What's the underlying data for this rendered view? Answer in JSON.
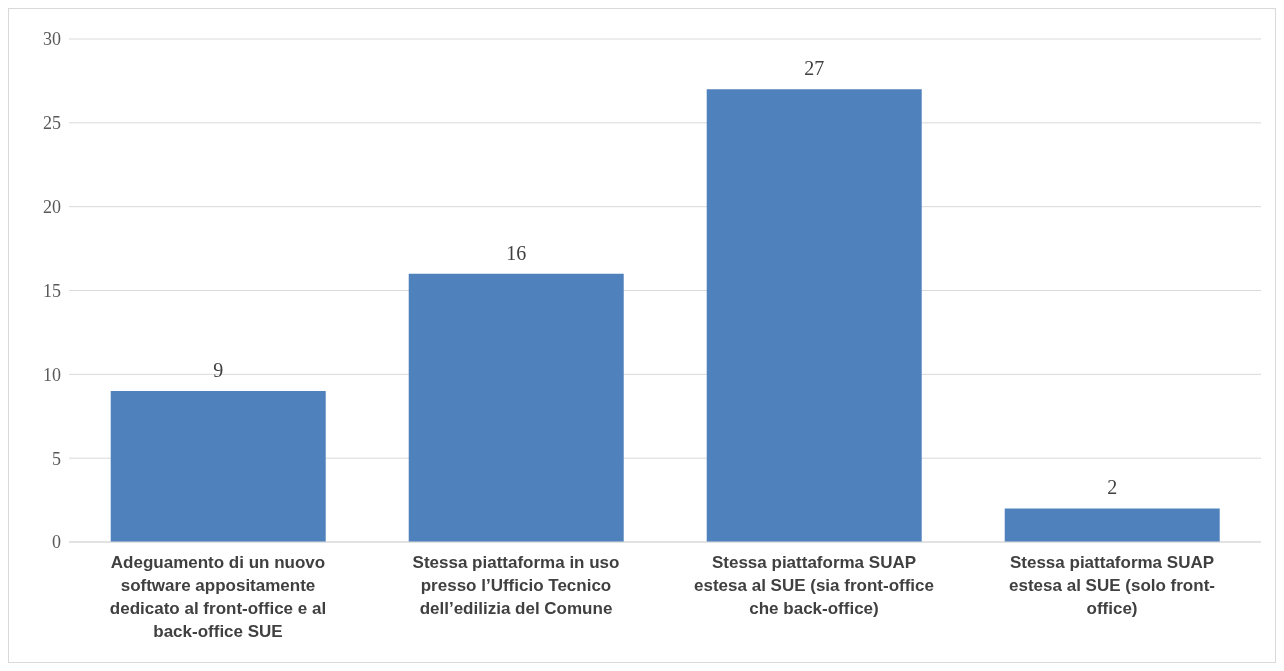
{
  "chart_data": {
    "type": "bar",
    "categories": [
      "Adeguamento di un nuovo software appositamente dedicato al front-office e al back-office SUE",
      "Stessa piattaforma in uso presso l’Ufficio Tecnico dell’edilizia del Comune",
      "Stessa piattaforma SUAP estesa al SUE (sia front-office che back-office)",
      "Stessa piattaforma SUAP estesa al SUE (solo front-office)"
    ],
    "values": [
      9,
      16,
      27,
      2
    ],
    "color": "#4f81bd",
    "ylim": [
      0,
      30
    ],
    "yticks": [
      0,
      5,
      10,
      15,
      20,
      25,
      30
    ],
    "grid": "y",
    "data_labels": true
  }
}
